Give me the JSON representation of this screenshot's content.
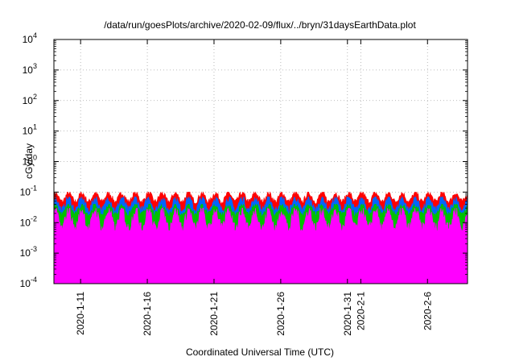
{
  "chart_data": {
    "type": "area",
    "title": "/data/run/goesPlots/archive/2020-02-09/flux/../bryn/31daysEarthData.plot",
    "xlabel": "Coordinated Universal Time (UTC)",
    "ylabel": "cGy/day",
    "yscale": "log",
    "ylim": [
      0.0001,
      10000
    ],
    "xlim": [
      "2020-01-09",
      "2020-02-09"
    ],
    "grid": true,
    "y_ticks": [
      {
        "base": "10",
        "exp": "-4",
        "value": 0.0001
      },
      {
        "base": "10",
        "exp": "-3",
        "value": 0.001
      },
      {
        "base": "10",
        "exp": "-2",
        "value": 0.01
      },
      {
        "base": "10",
        "exp": "-1",
        "value": 0.1
      },
      {
        "base": "10",
        "exp": "0",
        "value": 1
      },
      {
        "base": "10",
        "exp": "1",
        "value": 10
      },
      {
        "base": "10",
        "exp": "2",
        "value": 100
      },
      {
        "base": "10",
        "exp": "3",
        "value": 1000
      },
      {
        "base": "10",
        "exp": "4",
        "value": 10000
      }
    ],
    "x_ticks": [
      {
        "label": "2020-1-11",
        "date": "2020-01-11"
      },
      {
        "label": "2020-1-16",
        "date": "2020-01-16"
      },
      {
        "label": "2020-1-21",
        "date": "2020-01-21"
      },
      {
        "label": "2020-1-26",
        "date": "2020-01-26"
      },
      {
        "label": "2020-1-31",
        "date": "2020-01-31"
      },
      {
        "label": "2020-2-1",
        "date": "2020-02-01"
      },
      {
        "label": "2020-2-6",
        "date": "2020-02-06"
      }
    ],
    "series": [
      {
        "color": "#ff0000",
        "approx_range": [
          0.04,
          0.1
        ]
      },
      {
        "color": "#0066ff",
        "approx_range": [
          0.02,
          0.07
        ]
      },
      {
        "color": "#00c000",
        "approx_range": [
          0.015,
          0.04
        ]
      },
      {
        "color": "#ff00ff",
        "approx_range": [
          0.004,
          0.03
        ]
      }
    ],
    "dropouts_dates": [
      "2020-01-15",
      "2020-01-17",
      "2020-01-18",
      "2020-01-22",
      "2020-01-23",
      "2020-01-31",
      "2020-02-05",
      "2020-02-06",
      "2020-02-07"
    ]
  }
}
